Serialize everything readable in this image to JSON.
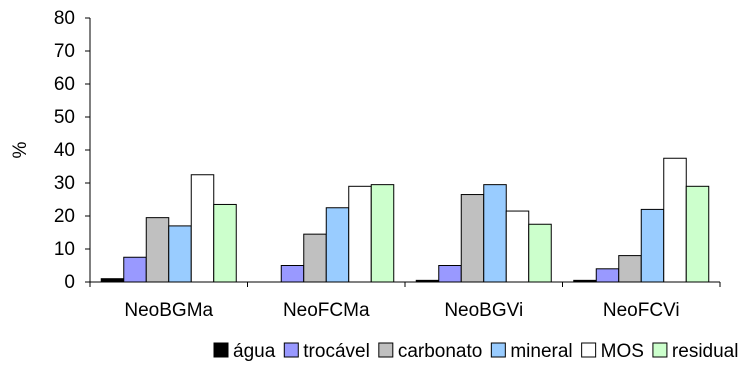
{
  "chart_data": {
    "type": "bar",
    "title": "",
    "xlabel": "",
    "ylabel": "%",
    "ylim": [
      0,
      80
    ],
    "yticks": [
      0,
      10,
      20,
      30,
      40,
      50,
      60,
      70,
      80
    ],
    "grid": false,
    "legend_position": "bottom",
    "categories": [
      "NeoBGMa",
      "NeoFCMa",
      "NeoBGVi",
      "NeoFCVi"
    ],
    "series": [
      {
        "name": "água",
        "color": "#000000",
        "values": [
          1.0,
          0.0,
          0.5,
          0.5
        ]
      },
      {
        "name": "trocável",
        "color": "#9999ff",
        "values": [
          7.5,
          5.0,
          5.0,
          4.0
        ]
      },
      {
        "name": "carbonato",
        "color": "#c0c0c0",
        "values": [
          19.5,
          14.5,
          26.5,
          8.0
        ]
      },
      {
        "name": "mineral",
        "color": "#99ccff",
        "values": [
          17.0,
          22.5,
          29.5,
          22.0
        ]
      },
      {
        "name": "MOS",
        "color": "#ffffff",
        "values": [
          32.5,
          29.0,
          21.5,
          37.5
        ]
      },
      {
        "name": "residual",
        "color": "#ccffcc",
        "values": [
          23.5,
          29.5,
          17.5,
          29.0
        ]
      }
    ]
  }
}
